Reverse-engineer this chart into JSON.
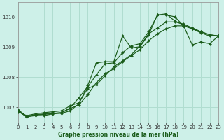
{
  "title": "Graphe pression niveau de la mer (hPa)",
  "bg_color": "#cdf0e8",
  "grid_color": "#b0ddd0",
  "line_color": "#1a5c1a",
  "x_min": 0,
  "x_max": 23,
  "y_min": 1006.5,
  "y_max": 1010.5,
  "yticks": [
    1007,
    1008,
    1009,
    1010
  ],
  "xticks": [
    0,
    1,
    2,
    3,
    4,
    5,
    6,
    7,
    8,
    9,
    10,
    11,
    12,
    13,
    14,
    15,
    16,
    17,
    18,
    19,
    20,
    21,
    22,
    23
  ],
  "series": [
    [
      1006.85,
      1006.72,
      1006.78,
      1006.82,
      1006.85,
      1006.88,
      1007.05,
      1007.15,
      1007.62,
      1007.75,
      1008.05,
      1008.35,
      1008.55,
      1008.75,
      1009.05,
      1009.45,
      1009.65,
      1009.85,
      1009.85,
      1009.78,
      1009.65,
      1009.52,
      1009.42,
      1009.38
    ],
    [
      1006.92,
      1006.7,
      1006.75,
      1006.78,
      1006.8,
      1006.82,
      1006.98,
      1007.32,
      1007.68,
      1008.08,
      1008.45,
      1008.48,
      1008.82,
      1009.05,
      1009.12,
      1009.52,
      1010.08,
      1010.12,
      1009.88,
      1009.75,
      1009.62,
      1009.48,
      1009.38,
      1009.38
    ],
    [
      1006.88,
      1006.68,
      1006.72,
      1006.72,
      1006.78,
      1006.8,
      1006.88,
      1007.12,
      1007.72,
      1008.48,
      1008.52,
      1008.52,
      1009.38,
      1008.98,
      1009.02,
      1009.42,
      1010.08,
      1010.08,
      1010.02,
      1009.72,
      1009.08,
      1009.18,
      1009.12,
      1009.38
    ],
    [
      1006.88,
      1006.68,
      1006.74,
      1006.76,
      1006.79,
      1006.82,
      1006.96,
      1007.08,
      1007.42,
      1007.82,
      1008.12,
      1008.28,
      1008.52,
      1008.72,
      1008.92,
      1009.22,
      1009.45,
      1009.62,
      1009.72,
      1009.72,
      1009.62,
      1009.52,
      1009.42,
      1009.38
    ]
  ]
}
